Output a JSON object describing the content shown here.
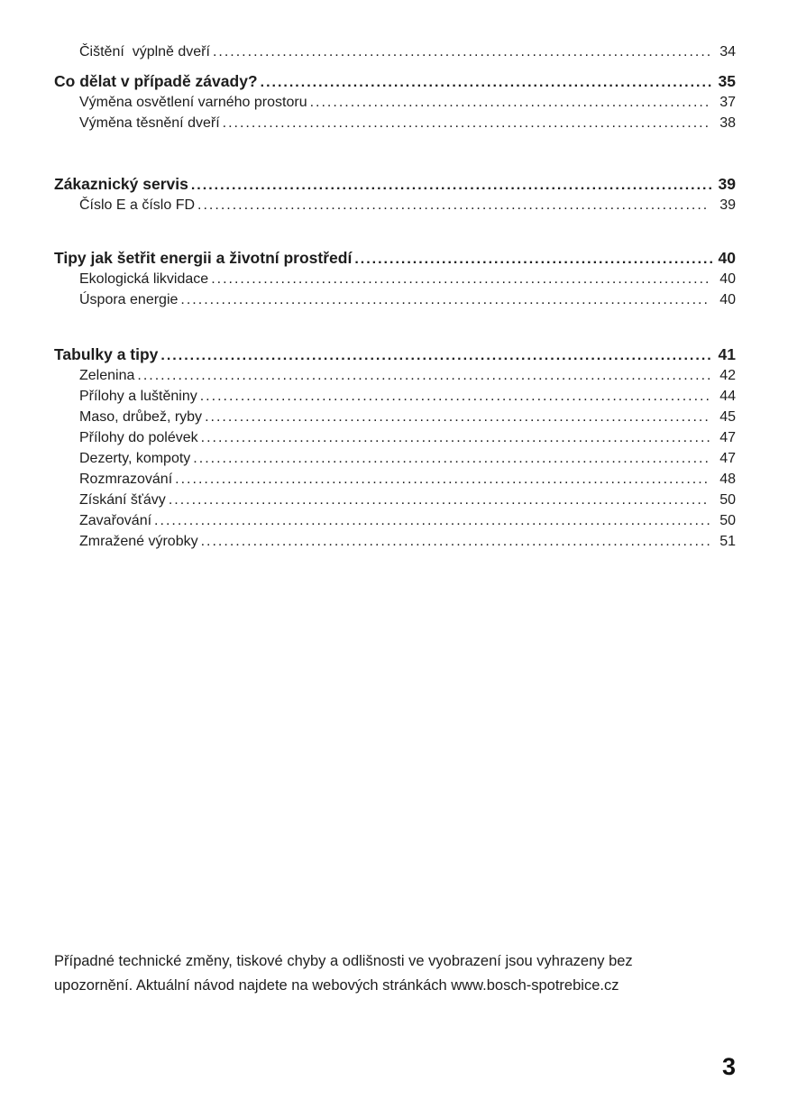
{
  "toc": {
    "entries": [
      {
        "label": "Čištění  výplně dveří",
        "page": "34",
        "level": "sub"
      },
      {
        "label": "Co dělat v případě závady?",
        "page": "35",
        "level": "main"
      },
      {
        "label": "Výměna osvětlení varného prostoru",
        "page": "37",
        "level": "sub"
      },
      {
        "label": "Výměna těsnění dveří",
        "page": "38",
        "level": "sub"
      },
      {
        "label": "Zákaznický servis",
        "page": "39",
        "level": "main"
      },
      {
        "label": "Číslo E a číslo FD",
        "page": "39",
        "level": "sub"
      },
      {
        "label": "Tipy jak šetřit energii a životní prostředí",
        "page": "40",
        "level": "main"
      },
      {
        "label": "Ekologická likvidace",
        "page": "40",
        "level": "sub"
      },
      {
        "label": "Úspora energie",
        "page": "40",
        "level": "sub"
      },
      {
        "label": "Tabulky a tipy",
        "page": "41",
        "level": "main"
      },
      {
        "label": "Zelenina",
        "page": "42",
        "level": "sub"
      },
      {
        "label": "Přílohy a luštěniny",
        "page": "44",
        "level": "sub"
      },
      {
        "label": "Maso, drůbež, ryby",
        "page": "45",
        "level": "sub"
      },
      {
        "label": "Přílohy do polévek",
        "page": "47",
        "level": "sub"
      },
      {
        "label": "Dezerty, kompoty",
        "page": "47",
        "level": "sub"
      },
      {
        "label": "Rozmrazování",
        "page": "48",
        "level": "sub"
      },
      {
        "label": "Získání šťávy",
        "page": "50",
        "level": "sub"
      },
      {
        "label": "Zavařování",
        "page": "50",
        "level": "sub"
      },
      {
        "label": "Zmražené výrobky",
        "page": "51",
        "level": "sub"
      }
    ]
  },
  "footer": {
    "line1": "Případné technické změny, tiskové chyby a odlišnosti ve vyobrazení jsou vyhrazeny bez",
    "line2": "upozornění. Aktuální návod najdete na webových stránkách www.bosch-spotrebice.cz"
  },
  "page": {
    "number": "3"
  }
}
